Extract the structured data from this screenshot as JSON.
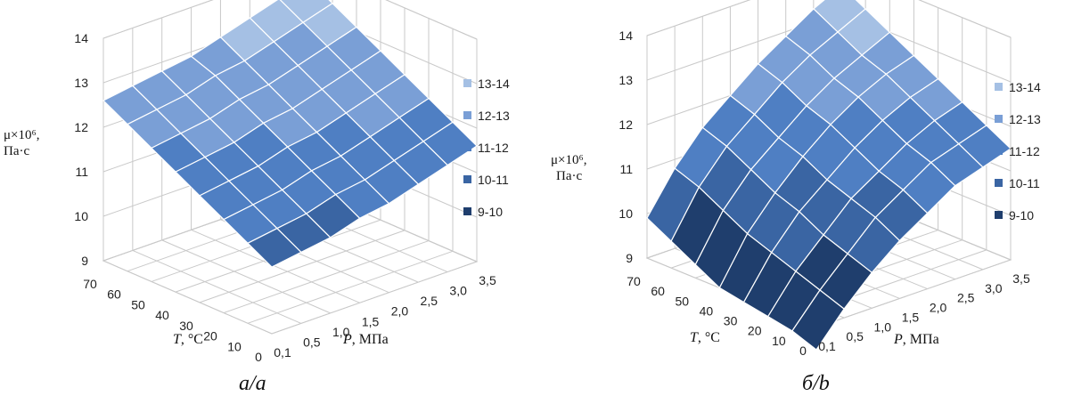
{
  "chart_data": [
    {
      "type": "surface",
      "caption": "а/a",
      "zlabel_line1": "μ×10⁶,",
      "zlabel_line2": "Па·с",
      "xlabel_var": "T",
      "xlabel_unit": ", °С",
      "ylabel_var": "P",
      "ylabel_unit": ", МПа",
      "zlim": [
        9,
        14
      ],
      "z_ticks": [
        "9",
        "10",
        "11",
        "12",
        "13",
        "14"
      ],
      "T_ticks": [
        "70",
        "60",
        "50",
        "40",
        "30",
        "20",
        "10",
        "0"
      ],
      "P_ticks": [
        "0,1",
        "0,5",
        "1,0",
        "1,5",
        "2,0",
        "2,5",
        "3,0",
        "3,5"
      ],
      "T_values": [
        70,
        60,
        50,
        40,
        30,
        20,
        10,
        0
      ],
      "P_values": [
        0.1,
        0.5,
        1.0,
        1.5,
        2.0,
        2.5,
        3.0,
        3.5
      ],
      "legend": [
        "13-14",
        "12-13",
        "11-12",
        "10-11",
        "9-10"
      ],
      "z": [
        [
          12.6,
          12.7,
          12.8,
          12.9,
          13.1,
          13.3,
          13.5,
          13.7
        ],
        [
          12.3,
          12.4,
          12.5,
          12.7,
          12.8,
          13.0,
          13.2,
          13.4
        ],
        [
          12.0,
          12.1,
          12.2,
          12.4,
          12.5,
          12.7,
          12.9,
          13.1
        ],
        [
          11.7,
          11.8,
          11.9,
          12.1,
          12.2,
          12.4,
          12.6,
          12.8
        ],
        [
          11.4,
          11.5,
          11.6,
          11.8,
          11.9,
          12.1,
          12.3,
          12.5
        ],
        [
          11.1,
          11.2,
          11.3,
          11.5,
          11.6,
          11.8,
          12.0,
          12.2
        ],
        [
          10.8,
          10.9,
          11.0,
          11.2,
          11.3,
          11.5,
          11.7,
          11.9
        ],
        [
          10.5,
          10.6,
          10.7,
          10.9,
          11.0,
          11.2,
          11.4,
          11.6
        ]
      ]
    },
    {
      "type": "surface",
      "caption": "б/b",
      "zlabel_line1": "μ×10⁶,",
      "zlabel_line2": "Па·с",
      "xlabel_var": "T",
      "xlabel_unit": ", °С",
      "ylabel_var": "P",
      "ylabel_unit": ", МПа",
      "zlim": [
        9,
        14
      ],
      "z_ticks": [
        "9",
        "10",
        "11",
        "12",
        "13",
        "14"
      ],
      "T_ticks": [
        "70",
        "60",
        "50",
        "40",
        "30",
        "20",
        "10",
        "0"
      ],
      "P_ticks": [
        "0,1",
        "0,5",
        "1,0",
        "1,5",
        "2,0",
        "2,5",
        "3,0",
        "3,5"
      ],
      "T_values": [
        70,
        60,
        50,
        40,
        30,
        20,
        10,
        0
      ],
      "P_values": [
        0.1,
        0.5,
        1.0,
        1.5,
        2.0,
        2.5,
        3.0,
        3.5
      ],
      "legend": [
        "13-14",
        "12-13",
        "11-12",
        "10-11",
        "9-10"
      ],
      "z": [
        [
          9.9,
          10.8,
          11.5,
          12.0,
          12.5,
          12.9,
          13.3,
          13.6
        ],
        [
          9.6,
          10.6,
          11.3,
          11.8,
          12.3,
          12.7,
          13.0,
          13.3
        ],
        [
          9.3,
          10.3,
          11.0,
          11.5,
          12.0,
          12.4,
          12.7,
          13.0
        ],
        [
          9.0,
          10.0,
          10.7,
          11.3,
          11.8,
          12.2,
          12.5,
          12.7
        ],
        [
          8.9,
          9.8,
          10.5,
          11.0,
          11.5,
          11.9,
          12.2,
          12.4
        ],
        [
          8.8,
          9.6,
          10.2,
          10.8,
          11.2,
          11.6,
          11.9,
          12.1
        ],
        [
          8.7,
          9.4,
          10.0,
          10.6,
          11.0,
          11.4,
          11.6,
          11.8
        ],
        [
          8.5,
          9.2,
          9.8,
          10.3,
          10.7,
          11.1,
          11.3,
          11.5
        ]
      ]
    }
  ],
  "colors": {
    "band_13_14": "#a5c0e4",
    "band_12_13": "#7a9fd6",
    "band_11_12": "#4f7fc3",
    "band_10_11": "#3a65a3",
    "band_9_10": "#1f3e6d",
    "gridline": "#c9c9c9",
    "mesh": "#ffffff"
  }
}
